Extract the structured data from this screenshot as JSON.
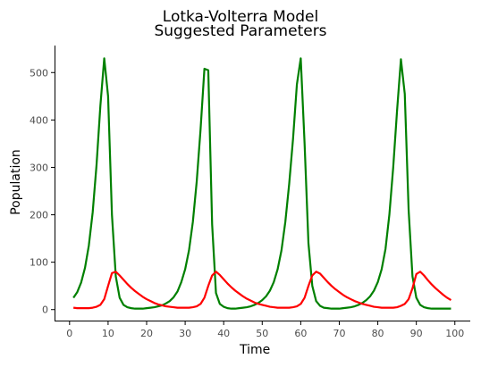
{
  "chart_data": {
    "type": "line",
    "title": "Lotka-Volterra Model",
    "subtitle": "Suggested Parameters",
    "xlabel": "Time",
    "ylabel": "Population",
    "xlim": [
      -3.9,
      104
    ],
    "ylim": [
      -25,
      557
    ],
    "xticks": [
      0,
      10,
      20,
      30,
      40,
      50,
      60,
      70,
      80,
      90,
      100
    ],
    "yticks": [
      0,
      100,
      200,
      300,
      400,
      500
    ],
    "grid": false,
    "legend": "none",
    "series": [
      {
        "color": "#008000",
        "x": [
          1,
          2,
          3,
          4,
          5,
          6,
          7,
          8,
          9,
          10,
          11,
          12,
          13,
          14,
          15,
          16,
          17,
          18,
          19,
          20,
          21,
          22,
          23,
          24,
          25,
          26,
          27,
          28,
          29,
          30,
          31,
          32,
          33,
          34,
          35,
          36,
          37,
          38,
          39,
          40,
          41,
          42,
          43,
          44,
          45,
          46,
          47,
          48,
          49,
          50,
          51,
          52,
          53,
          54,
          55,
          56,
          57,
          58,
          59,
          60,
          61,
          62,
          63,
          64,
          65,
          66,
          67,
          68,
          69,
          70,
          71,
          72,
          73,
          74,
          75,
          76,
          77,
          78,
          79,
          80,
          81,
          82,
          83,
          84,
          85,
          86,
          87,
          88,
          89,
          90,
          91,
          92,
          93,
          94,
          95,
          96,
          97,
          98,
          99
        ],
        "y": [
          25,
          37,
          57,
          88,
          135,
          205,
          305,
          430,
          530,
          450,
          200,
          70,
          25,
          10,
          5,
          3,
          2,
          2,
          2,
          3,
          4,
          5,
          7,
          9,
          13,
          18,
          26,
          38,
          58,
          85,
          125,
          185,
          270,
          380,
          508,
          505,
          180,
          35,
          12,
          6,
          3,
          2,
          2,
          3,
          4,
          5,
          7,
          10,
          14,
          20,
          28,
          40,
          58,
          85,
          125,
          185,
          265,
          360,
          475,
          530,
          350,
          140,
          50,
          18,
          8,
          4,
          3,
          2,
          2,
          2,
          3,
          4,
          5,
          7,
          10,
          14,
          20,
          28,
          40,
          58,
          85,
          128,
          200,
          300,
          420,
          528,
          455,
          210,
          70,
          25,
          10,
          5,
          3,
          2,
          2,
          2,
          2,
          2,
          2
        ]
      },
      {
        "color": "#ff0000",
        "x": [
          1,
          2,
          3,
          4,
          5,
          6,
          7,
          8,
          9,
          10,
          11,
          12,
          13,
          14,
          15,
          16,
          17,
          18,
          19,
          20,
          21,
          22,
          23,
          24,
          25,
          26,
          27,
          28,
          29,
          30,
          31,
          32,
          33,
          34,
          35,
          36,
          37,
          38,
          39,
          40,
          41,
          42,
          43,
          44,
          45,
          46,
          47,
          48,
          49,
          50,
          51,
          52,
          53,
          54,
          55,
          56,
          57,
          58,
          59,
          60,
          61,
          62,
          63,
          64,
          65,
          66,
          67,
          68,
          69,
          70,
          71,
          72,
          73,
          74,
          75,
          76,
          77,
          78,
          79,
          80,
          81,
          82,
          83,
          84,
          85,
          86,
          87,
          88,
          89,
          90,
          91,
          92,
          93,
          94,
          95,
          96,
          97,
          98,
          99
        ],
        "y": [
          4,
          3,
          3,
          3,
          3,
          4,
          6,
          10,
          22,
          50,
          77,
          80,
          72,
          63,
          54,
          46,
          39,
          33,
          27,
          22,
          18,
          14,
          11,
          9,
          7,
          6,
          5,
          4,
          4,
          4,
          4,
          5,
          7,
          12,
          25,
          50,
          72,
          80,
          73,
          64,
          55,
          47,
          40,
          34,
          28,
          23,
          19,
          15,
          12,
          10,
          8,
          6,
          5,
          4,
          4,
          4,
          4,
          5,
          7,
          12,
          25,
          50,
          72,
          80,
          76,
          67,
          58,
          50,
          43,
          37,
          31,
          26,
          22,
          18,
          15,
          12,
          10,
          8,
          6,
          5,
          4,
          4,
          4,
          4,
          5,
          8,
          12,
          22,
          45,
          75,
          80,
          72,
          62,
          53,
          45,
          38,
          31,
          25,
          20
        ]
      }
    ]
  }
}
